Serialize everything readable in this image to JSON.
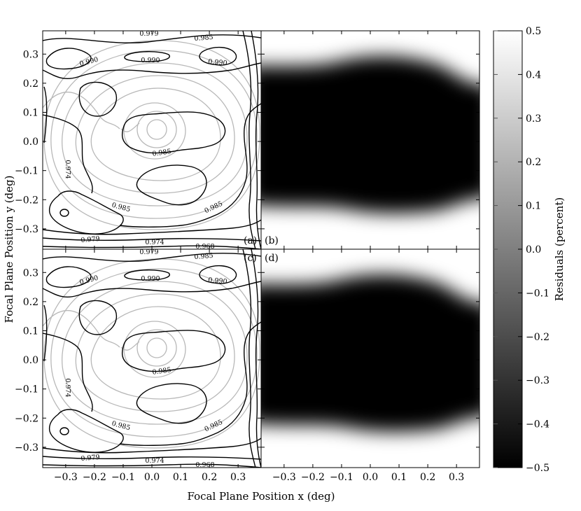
{
  "chart_data": {
    "type": "heatmap",
    "xlabel": "Focal Plane Position x (deg)",
    "ylabel": "Focal Plane Position y (deg)",
    "xlim": [
      -0.38,
      0.38
    ],
    "ylim": [
      -0.37,
      0.38
    ],
    "x_ticks": [
      "−0.3",
      "−0.2",
      "−0.1",
      "0.0",
      "0.1",
      "0.2",
      "0.3"
    ],
    "y_ticks": [
      "−0.3",
      "−0.2",
      "−0.1",
      "0.0",
      "0.1",
      "0.2",
      "0.3"
    ],
    "grid": false,
    "panels": [
      {
        "label": "(a)",
        "kind": "contour",
        "position": "top-left",
        "contour_labels": [
          "0.979",
          "0.985",
          "0.990",
          "0.990",
          "0.990",
          "0.985",
          "0.985",
          "0.985",
          "0.979",
          "0.974",
          "0.968",
          "0.974"
        ]
      },
      {
        "label": "(b)",
        "kind": "residual-map",
        "position": "top-right"
      },
      {
        "label": "(c)",
        "kind": "contour",
        "position": "bottom-left",
        "contour_labels": [
          "0.979",
          "0.985",
          "0.990",
          "0.990",
          "0.990",
          "0.985",
          "0.985",
          "0.985",
          "0.979",
          "0.974",
          "0.968",
          "0.974"
        ]
      },
      {
        "label": "(d)",
        "kind": "residual-map",
        "position": "bottom-right"
      }
    ],
    "colorbar": {
      "label": "Residuals (percent)",
      "range": [
        -0.5,
        0.5
      ],
      "ticks": [
        "0.5",
        "0.4",
        "0.3",
        "0.2",
        "0.1",
        "0.0",
        "−0.1",
        "−0.2",
        "−0.3",
        "−0.4",
        "−0.5"
      ],
      "colormap": "gray",
      "low_color": "#000000",
      "high_color": "#ffffff"
    }
  }
}
